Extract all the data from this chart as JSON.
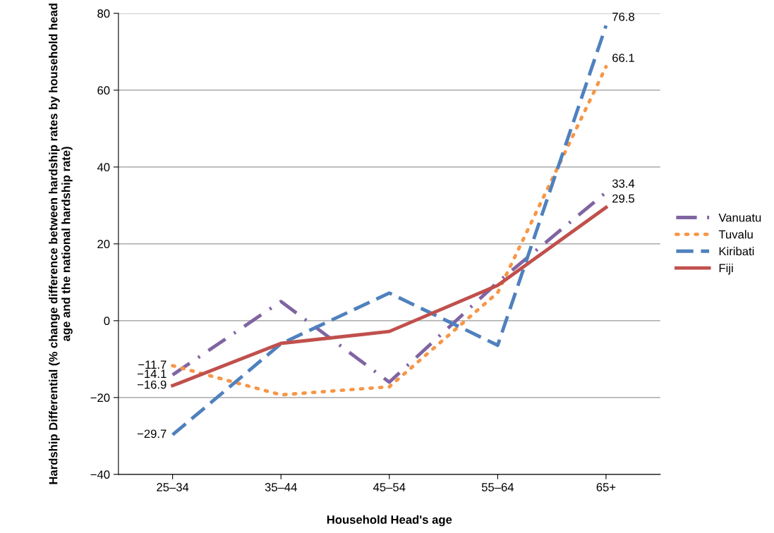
{
  "chart_data": {
    "type": "line",
    "xlabel": "Household Head's age",
    "ylabel": "Hardship Differential (% change difference between hardship rates by household head age and the national hardship rate)",
    "categories": [
      "25–34",
      "35–44",
      "45–54",
      "55–64",
      "65+"
    ],
    "series": [
      {
        "name": "Vanuatu",
        "color": "#8064a2",
        "line_style": "dashdot",
        "values": [
          -14.1,
          5,
          -16,
          10,
          33.4
        ],
        "value_labels": [
          "−14.1",
          null,
          null,
          null,
          "33.4"
        ]
      },
      {
        "name": "Tuvalu",
        "color": "#f79646",
        "line_style": "dotted",
        "values": [
          -11.7,
          -19.3,
          -17.2,
          7.3,
          66.1
        ],
        "value_labels": [
          "−11.7",
          null,
          null,
          null,
          "66.1"
        ]
      },
      {
        "name": "Kiribati",
        "color": "#4f81bd",
        "line_style": "dashed",
        "values": [
          -29.7,
          -6,
          7.2,
          -6.4,
          76.8
        ],
        "value_labels": [
          "−29.7",
          null,
          null,
          null,
          "76.8"
        ]
      },
      {
        "name": "Fiji",
        "color": "#c0504d",
        "line_style": "solid",
        "values": [
          -16.9,
          -5.9,
          -2.8,
          9.2,
          29.5
        ],
        "value_labels": [
          "−16.9",
          null,
          null,
          null,
          "29.5"
        ]
      }
    ],
    "ylim": [
      -40,
      80
    ],
    "yticks": [
      {
        "value": -40,
        "label": "−40"
      },
      {
        "value": -20,
        "label": "−20"
      },
      0,
      20,
      40,
      60,
      80
    ],
    "grid": "y",
    "legend": "right",
    "marker": "none"
  }
}
